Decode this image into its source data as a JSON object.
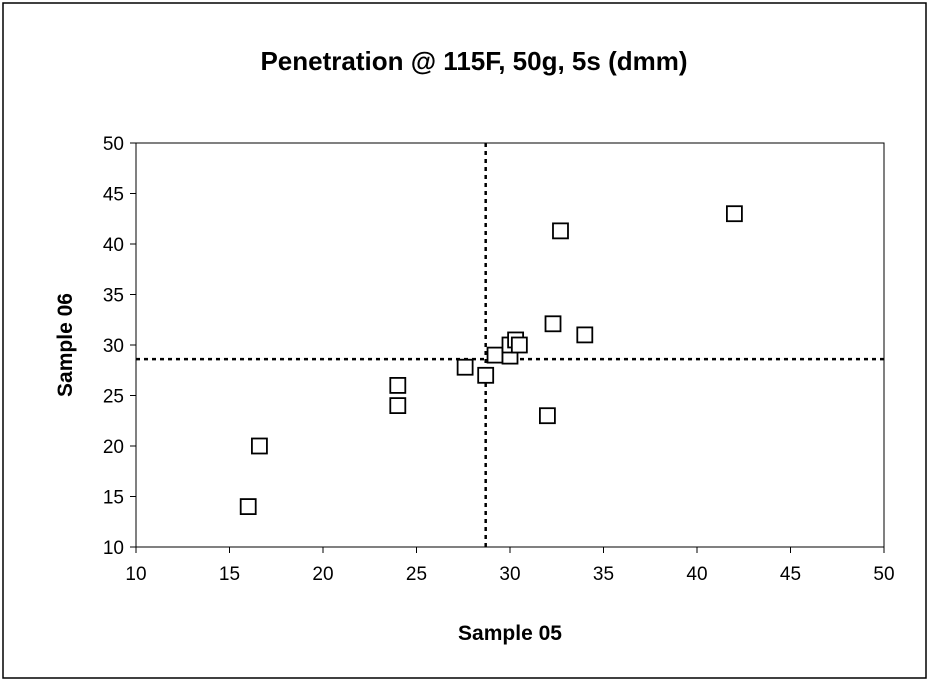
{
  "chart_data": {
    "type": "scatter",
    "title": "Penetration @ 115F, 50g, 5s (dmm)",
    "xlabel": "Sample 05",
    "ylabel": "Sample 06",
    "xlim": [
      10,
      50
    ],
    "ylim": [
      10,
      50
    ],
    "xticks": [
      "10",
      "15",
      "20",
      "25",
      "30",
      "35",
      "40",
      "45",
      "50"
    ],
    "yticks": [
      "10",
      "15",
      "20",
      "25",
      "30",
      "35",
      "40",
      "45",
      "50"
    ],
    "grid": false,
    "marker": "open-square",
    "reference_lines": {
      "x": 28.7,
      "y": 28.6,
      "style": "dotted"
    },
    "points": [
      {
        "x": 16.0,
        "y": 14.0
      },
      {
        "x": 16.6,
        "y": 20.0
      },
      {
        "x": 24.0,
        "y": 24.0
      },
      {
        "x": 24.0,
        "y": 26.0
      },
      {
        "x": 27.6,
        "y": 27.8
      },
      {
        "x": 28.7,
        "y": 27.0
      },
      {
        "x": 29.2,
        "y": 29.0
      },
      {
        "x": 30.0,
        "y": 28.9
      },
      {
        "x": 30.0,
        "y": 30.0
      },
      {
        "x": 30.3,
        "y": 30.5
      },
      {
        "x": 30.5,
        "y": 30.0
      },
      {
        "x": 32.0,
        "y": 23.0
      },
      {
        "x": 32.3,
        "y": 32.1
      },
      {
        "x": 32.7,
        "y": 41.3
      },
      {
        "x": 34.0,
        "y": 31.0
      },
      {
        "x": 42.0,
        "y": 43.0
      }
    ]
  }
}
